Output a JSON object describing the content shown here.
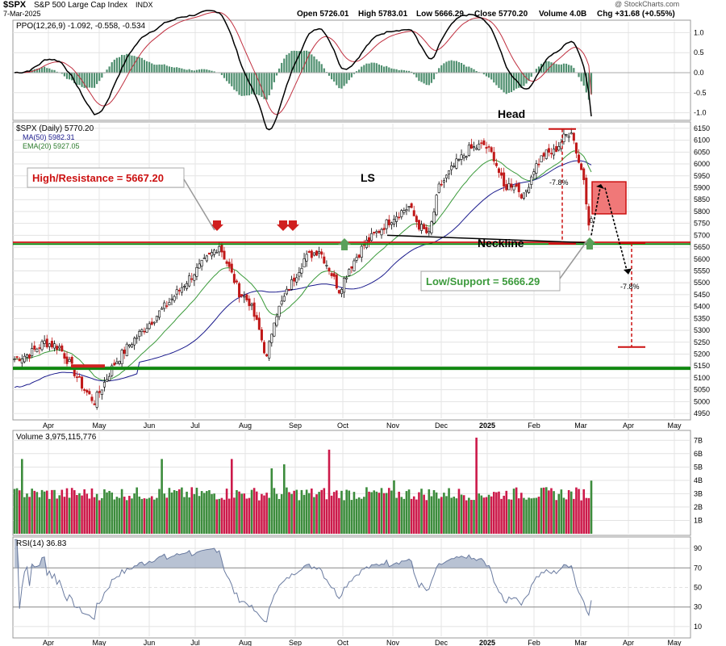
{
  "header": {
    "symbol": "$SPX",
    "name": "S&P 500 Large Cap Index",
    "exchange": "INDX",
    "date": "7-Mar-2025",
    "open": "Open 5726.01",
    "high": "High 5783.01",
    "low": "Low 5666.29",
    "close": "Close 5770.20",
    "volume": "Volume 4.0B",
    "change": "Chg +31.68 (+0.55%)",
    "credit": "@ StockCharts.com"
  },
  "ppo": {
    "legend": "PPO(12,26,9) -1.092, -0.558, -0.534",
    "ticks": [
      "1.0",
      "0.5",
      "0.0",
      "-0.5",
      "-1.0"
    ]
  },
  "price": {
    "legend_main": "$SPX (Daily) 5770.20",
    "legend_ma50": "MA(50) 5982.31",
    "legend_ema20": "EMA(20) 5927.05",
    "ticks": [
      "6150",
      "6100",
      "6050",
      "6000",
      "5950",
      "5900",
      "5850",
      "5800",
      "5750",
      "5700",
      "5650",
      "5600",
      "5550",
      "5500",
      "5450",
      "5400",
      "5350",
      "5300",
      "5250",
      "5200",
      "5150",
      "5100",
      "5050",
      "5000",
      "4950"
    ],
    "labels": {
      "resistance": "High/Resistance = 5667.20",
      "support": "Low/Support = 5666.29",
      "head": "Head",
      "ls": "LS",
      "neckline": "Neckline",
      "drop1": "-7.8%",
      "drop2": "-7.8%"
    }
  },
  "volume": {
    "legend": "Volume 3,975,115,776",
    "ticks": [
      "7B",
      "6B",
      "5B",
      "4B",
      "3B",
      "2B",
      "1B"
    ]
  },
  "rsi": {
    "legend": "RSI(14) 36.83",
    "ticks": [
      "90",
      "70",
      "50",
      "30",
      "10"
    ]
  },
  "months_top": [
    "Apr",
    "May",
    "Jun",
    "Jul",
    "Aug",
    "Sep",
    "Oct",
    "Nov",
    "Dec",
    "2025",
    "Feb",
    "Mar",
    "Apr",
    "May"
  ],
  "months_bottom": [
    "Apr",
    "May",
    "Jun",
    "Jul",
    "Aug",
    "Sep",
    "Oct",
    "Nov",
    "Dec",
    "2025",
    "Feb",
    "Mar",
    "Apr",
    "May"
  ],
  "colors": {
    "up": "#3c8c3c",
    "down": "#cc1a4a",
    "resistance": "#cc1111",
    "support": "#108810",
    "ma50": "#1a1a8c",
    "ema20": "#3a9a3a",
    "ppo_line": "#000000",
    "ppo_signal": "#c03040",
    "ppo_hist": "#4f8f6f"
  },
  "chart_data": [
    {
      "type": "line",
      "title": "$SPX (Daily) 5770.20",
      "x": [
        "Apr",
        "May",
        "Jun",
        "Jul",
        "Aug",
        "Sep",
        "Oct",
        "Nov",
        "Dec",
        "2025",
        "Feb",
        "Mar"
      ],
      "series": [
        {
          "name": "$SPX",
          "values": [
            5250,
            5020,
            5280,
            5610,
            5400,
            5590,
            5740,
            5780,
            6050,
            5940,
            6100,
            5770
          ]
        },
        {
          "name": "MA(50)",
          "values": [
            5150,
            5150,
            5200,
            5380,
            5440,
            5450,
            5560,
            5710,
            5870,
            5930,
            5990,
            5982
          ]
        },
        {
          "name": "EMA(20)",
          "values": [
            5200,
            5100,
            5250,
            5520,
            5420,
            5520,
            5700,
            5760,
            6000,
            5960,
            6050,
            5927
          ]
        }
      ],
      "annotations": {
        "resistance": 5667.2,
        "support": 5666.29,
        "lower_support": 5140,
        "head": 6147,
        "projected_target": 5230
      },
      "ylim": [
        4930,
        6170
      ]
    },
    {
      "type": "line",
      "title": "PPO(12,26,9) -1.092, -0.558, -0.534",
      "series": [
        {
          "name": "PPO",
          "values": [
            0.3,
            -0.9,
            0.4,
            0.9,
            -1.0,
            0.2,
            0.6,
            -0.3,
            1.0,
            -0.4,
            0.5,
            -1.09
          ]
        },
        {
          "name": "Signal",
          "values": [
            0.2,
            -0.7,
            0.2,
            0.8,
            -0.6,
            0.1,
            0.5,
            -0.1,
            0.8,
            -0.2,
            0.4,
            -0.56
          ]
        }
      ],
      "ylim": [
        -1.1,
        1.2
      ]
    },
    {
      "type": "bar",
      "title": "Volume 3,975,115,776",
      "categories": [
        "Apr",
        "May",
        "Jun",
        "Jul",
        "Aug",
        "Sep",
        "Oct",
        "Nov",
        "Dec",
        "2025",
        "Feb",
        "Mar"
      ],
      "values": [
        3.0,
        3.3,
        3.1,
        3.2,
        4.2,
        3.0,
        2.9,
        3.3,
        3.0,
        3.4,
        3.3,
        3.98
      ],
      "ylim": [
        0,
        7.5
      ]
    },
    {
      "type": "line",
      "title": "RSI(14) 36.83",
      "series": [
        {
          "name": "RSI(14)",
          "values": [
            55,
            40,
            62,
            78,
            45,
            60,
            62,
            50,
            70,
            45,
            62,
            36.83
          ]
        }
      ],
      "ylim": [
        0,
        100
      ]
    }
  ]
}
